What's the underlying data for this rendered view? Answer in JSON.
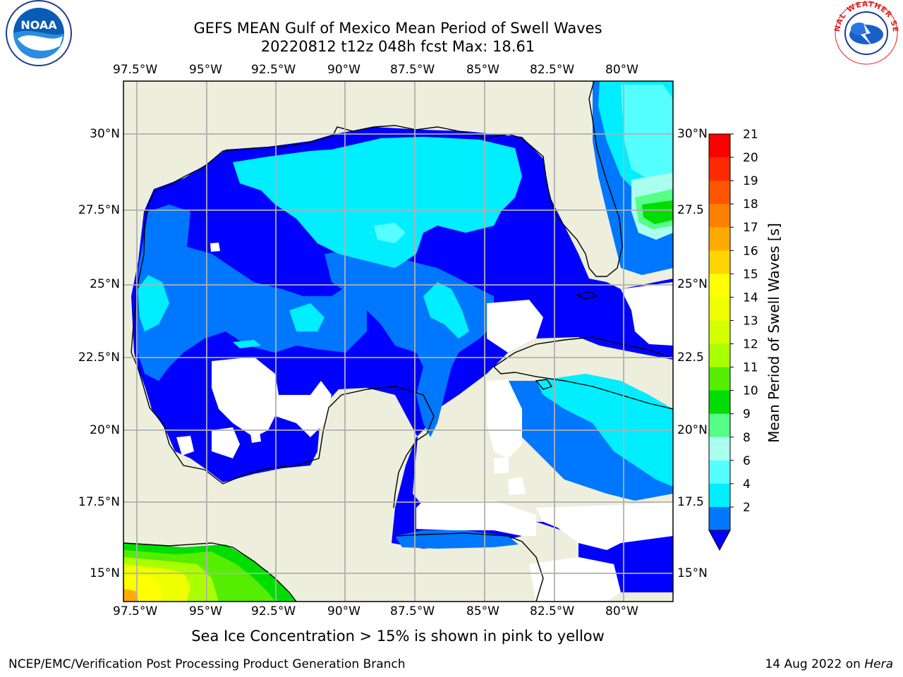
{
  "header": {
    "title_line1": "GEFS MEAN Gulf of Mexico Mean Period of Swell Waves",
    "title_line2": "20220812 t12z 048h fcst   Max: 18.61"
  },
  "map": {
    "lon_labels": [
      "97.5°W",
      "95°W",
      "92.5°W",
      "90°W",
      "87.5°W",
      "85°W",
      "82.5°W",
      "80°W"
    ],
    "lat_labels_left": [
      "30°N",
      "27.5°N",
      "25°N",
      "22.5°N",
      "20°N",
      "17.5°N",
      "15°N"
    ],
    "lat_labels_right": [
      "30°N",
      "27.5",
      "25°N",
      "22.5",
      "20°N",
      "17.5",
      "15°N"
    ]
  },
  "colorbar": {
    "title": "Mean Period of Swell Waves [s]",
    "ticks": [
      "21",
      "20",
      "19",
      "18",
      "17",
      "16",
      "15",
      "14",
      "13",
      "12",
      "11",
      "10",
      "9",
      "8",
      "6",
      "4",
      "2"
    ],
    "colors_top_to_bottom": [
      "#ff0000",
      "#ff2a00",
      "#ff5500",
      "#ff7f00",
      "#ffaa00",
      "#ffd400",
      "#ffff00",
      "#eeff00",
      "#d4ff00",
      "#aaff00",
      "#55ee00",
      "#00dd00",
      "#55ff88",
      "#aaffee",
      "#55ffff",
      "#00eeff",
      "#0077ff"
    ],
    "extend_color": "#0000ff"
  },
  "logos": {
    "left_text": "NOAA",
    "right_text": "NATIONAL WEATHER SERVICE"
  },
  "note": "Sea Ice Concentration > 15% is shown in pink to yellow",
  "footer": {
    "left": "NCEP/EMC/Verification Post Processing Product Generation Branch",
    "right_prefix": "14 Aug 2022 on ",
    "right_host": "Hera"
  },
  "colors": {
    "land": "#eeeedd",
    "deep_blue": "#0000ff",
    "mid_blue": "#0077ff",
    "cyan": "#00eeff",
    "light_cyan": "#55ffff",
    "grid": "#b0b0b0"
  }
}
